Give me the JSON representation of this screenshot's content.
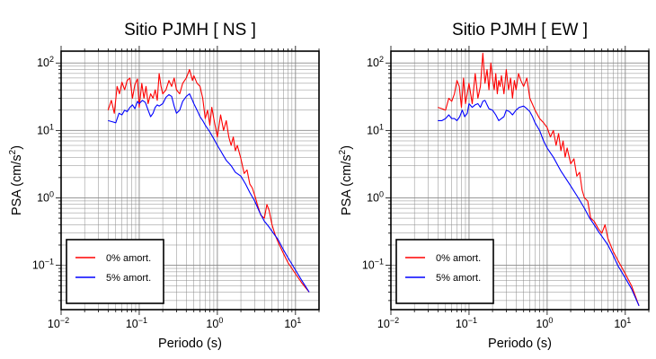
{
  "chart_data": [
    {
      "type": "line",
      "title": "Sitio PJMH [ NS ]",
      "xlabel": "Periodo (s)",
      "ylabel": "PSA (cm/s",
      "ylabel_sup": "2",
      "ylabel_end": ")",
      "x_scale": "log",
      "y_scale": "log",
      "xlim": [
        0.01,
        20
      ],
      "ylim": [
        0.022,
        150
      ],
      "grid": true,
      "legend_position": "bottom-left",
      "x_ticks": [
        {
          "value": 0.01,
          "base": "10",
          "exp": "−2"
        },
        {
          "value": 0.1,
          "base": "10",
          "exp": "−1"
        },
        {
          "value": 1,
          "base": "10",
          "exp": "0"
        },
        {
          "value": 10,
          "base": "10",
          "exp": "1"
        }
      ],
      "y_ticks": [
        {
          "value": 0.1,
          "base": "10",
          "exp": "−1"
        },
        {
          "value": 1,
          "base": "10",
          "exp": "0"
        },
        {
          "value": 10,
          "base": "10",
          "exp": "1"
        },
        {
          "value": 100,
          "base": "10",
          "exp": "2"
        }
      ],
      "series": [
        {
          "name": "0% amort.",
          "color": "#ff0000",
          "x": [
            0.04,
            0.044,
            0.048,
            0.052,
            0.056,
            0.06,
            0.065,
            0.07,
            0.076,
            0.082,
            0.088,
            0.095,
            0.1,
            0.108,
            0.115,
            0.122,
            0.13,
            0.14,
            0.15,
            0.16,
            0.17,
            0.18,
            0.19,
            0.2,
            0.22,
            0.24,
            0.26,
            0.28,
            0.3,
            0.33,
            0.36,
            0.4,
            0.44,
            0.48,
            0.5,
            0.55,
            0.6,
            0.65,
            0.7,
            0.75,
            0.8,
            0.85,
            0.9,
            1.0,
            1.1,
            1.2,
            1.3,
            1.4,
            1.5,
            1.6,
            1.7,
            1.8,
            2.0,
            2.2,
            2.4,
            2.6,
            2.8,
            3.0,
            3.3,
            3.6,
            4.0,
            4.3,
            4.6,
            5.0,
            5.5,
            6.0,
            7.0,
            8.0,
            10.0,
            12.0,
            15.0
          ],
          "y": [
            20,
            28,
            18,
            45,
            35,
            52,
            40,
            55,
            60,
            30,
            48,
            58,
            22,
            50,
            30,
            45,
            25,
            35,
            30,
            40,
            28,
            70,
            45,
            35,
            40,
            55,
            45,
            60,
            40,
            35,
            50,
            60,
            80,
            55,
            65,
            50,
            45,
            30,
            15,
            20,
            12,
            22,
            15,
            8,
            17,
            10,
            14,
            8,
            6,
            8,
            5,
            6,
            3.8,
            2.3,
            2.6,
            1.6,
            1.4,
            1.1,
            0.75,
            0.55,
            0.5,
            0.8,
            0.65,
            0.4,
            0.28,
            0.22,
            0.15,
            0.11,
            0.075,
            0.055,
            0.04
          ]
        },
        {
          "name": "5% amort.",
          "color": "#0000ff",
          "x": [
            0.04,
            0.045,
            0.05,
            0.055,
            0.06,
            0.065,
            0.07,
            0.076,
            0.082,
            0.088,
            0.095,
            0.1,
            0.11,
            0.12,
            0.13,
            0.14,
            0.15,
            0.16,
            0.17,
            0.18,
            0.2,
            0.22,
            0.24,
            0.26,
            0.28,
            0.3,
            0.33,
            0.36,
            0.4,
            0.44,
            0.48,
            0.5,
            0.55,
            0.6,
            0.65,
            0.7,
            0.8,
            0.9,
            1.0,
            1.1,
            1.2,
            1.3,
            1.5,
            1.7,
            2.0,
            2.3,
            2.6,
            3.0,
            3.5,
            4.0,
            4.5,
            5.0,
            6.0,
            7.0,
            8.0,
            10.0,
            12.0,
            15.0
          ],
          "y": [
            14,
            13.5,
            13,
            18,
            17,
            20,
            19,
            22,
            24,
            21,
            27,
            25,
            28,
            26,
            20,
            16,
            18,
            22,
            24,
            23,
            25,
            31,
            34,
            32,
            23,
            18,
            20,
            27,
            32,
            35,
            28,
            25,
            20,
            16,
            14,
            12,
            9.5,
            7.5,
            6,
            5,
            4.2,
            3.6,
            3,
            2.4,
            2.1,
            1.6,
            1.2,
            0.9,
            0.6,
            0.45,
            0.38,
            0.32,
            0.24,
            0.17,
            0.13,
            0.085,
            0.06,
            0.04
          ]
        }
      ]
    },
    {
      "type": "line",
      "title": "Sitio PJMH [ EW ]",
      "xlabel": "Periodo (s)",
      "ylabel": "PSA (cm/s",
      "ylabel_sup": "2",
      "ylabel_end": ")",
      "x_scale": "log",
      "y_scale": "log",
      "xlim": [
        0.01,
        20
      ],
      "ylim": [
        0.022,
        150
      ],
      "grid": true,
      "legend_position": "bottom-left",
      "x_ticks": [
        {
          "value": 0.01,
          "base": "10",
          "exp": "−2"
        },
        {
          "value": 0.1,
          "base": "10",
          "exp": "−1"
        },
        {
          "value": 1,
          "base": "10",
          "exp": "0"
        },
        {
          "value": 10,
          "base": "10",
          "exp": "1"
        }
      ],
      "y_ticks": [
        {
          "value": 0.1,
          "base": "10",
          "exp": "−1"
        },
        {
          "value": 1,
          "base": "10",
          "exp": "0"
        },
        {
          "value": 10,
          "base": "10",
          "exp": "1"
        },
        {
          "value": 100,
          "base": "10",
          "exp": "2"
        }
      ],
      "series": [
        {
          "name": "0% amort.",
          "color": "#ff0000",
          "x": [
            0.04,
            0.045,
            0.05,
            0.055,
            0.06,
            0.065,
            0.07,
            0.075,
            0.08,
            0.085,
            0.09,
            0.1,
            0.11,
            0.12,
            0.13,
            0.14,
            0.15,
            0.16,
            0.17,
            0.18,
            0.19,
            0.2,
            0.21,
            0.22,
            0.23,
            0.24,
            0.25,
            0.26,
            0.28,
            0.3,
            0.32,
            0.34,
            0.36,
            0.38,
            0.4,
            0.43,
            0.46,
            0.5,
            0.55,
            0.6,
            0.7,
            0.8,
            0.9,
            1.0,
            1.1,
            1.2,
            1.3,
            1.4,
            1.5,
            1.6,
            1.7,
            1.8,
            2.0,
            2.2,
            2.4,
            2.6,
            2.8,
            3.0,
            3.3,
            3.6,
            4.0,
            4.5,
            5.0,
            5.5,
            6.0,
            7.0,
            8.0,
            10.0,
            12.0,
            15.0
          ],
          "y": [
            22,
            21,
            20,
            30,
            27,
            35,
            55,
            45,
            22,
            60,
            25,
            50,
            25,
            70,
            30,
            45,
            140,
            50,
            80,
            40,
            100,
            60,
            40,
            70,
            35,
            55,
            45,
            65,
            35,
            80,
            40,
            60,
            30,
            55,
            40,
            70,
            55,
            45,
            60,
            30,
            20,
            15,
            13,
            11,
            8,
            10,
            6,
            9,
            5,
            7,
            4,
            5.5,
            3.2,
            3.8,
            2.1,
            2.4,
            1.3,
            1.0,
            0.9,
            0.5,
            0.45,
            0.35,
            0.3,
            0.4,
            0.25,
            0.16,
            0.12,
            0.075,
            0.05,
            0.025
          ]
        },
        {
          "name": "5% amort.",
          "color": "#0000ff",
          "x": [
            0.04,
            0.045,
            0.05,
            0.055,
            0.06,
            0.065,
            0.07,
            0.076,
            0.082,
            0.088,
            0.095,
            0.1,
            0.11,
            0.12,
            0.13,
            0.14,
            0.15,
            0.16,
            0.17,
            0.18,
            0.2,
            0.22,
            0.24,
            0.26,
            0.28,
            0.3,
            0.33,
            0.36,
            0.4,
            0.44,
            0.5,
            0.55,
            0.6,
            0.65,
            0.7,
            0.8,
            0.9,
            1.0,
            1.2,
            1.5,
            2.0,
            2.5,
            3.0,
            3.5,
            4.0,
            4.5,
            5.0,
            6.0,
            7.0,
            8.0,
            10.0,
            12.0,
            15.0
          ],
          "y": [
            14,
            14,
            15,
            17,
            15,
            15,
            14,
            16,
            20,
            16,
            18,
            25,
            22,
            24,
            25,
            22,
            27,
            28,
            24,
            21,
            20,
            17,
            14,
            15,
            16,
            20,
            19,
            17,
            20,
            22,
            23,
            21,
            19,
            16,
            13,
            10,
            7,
            5.5,
            4,
            2.5,
            1.5,
            1.0,
            0.7,
            0.5,
            0.4,
            0.32,
            0.27,
            0.2,
            0.14,
            0.1,
            0.065,
            0.045,
            0.025
          ]
        }
      ]
    }
  ]
}
